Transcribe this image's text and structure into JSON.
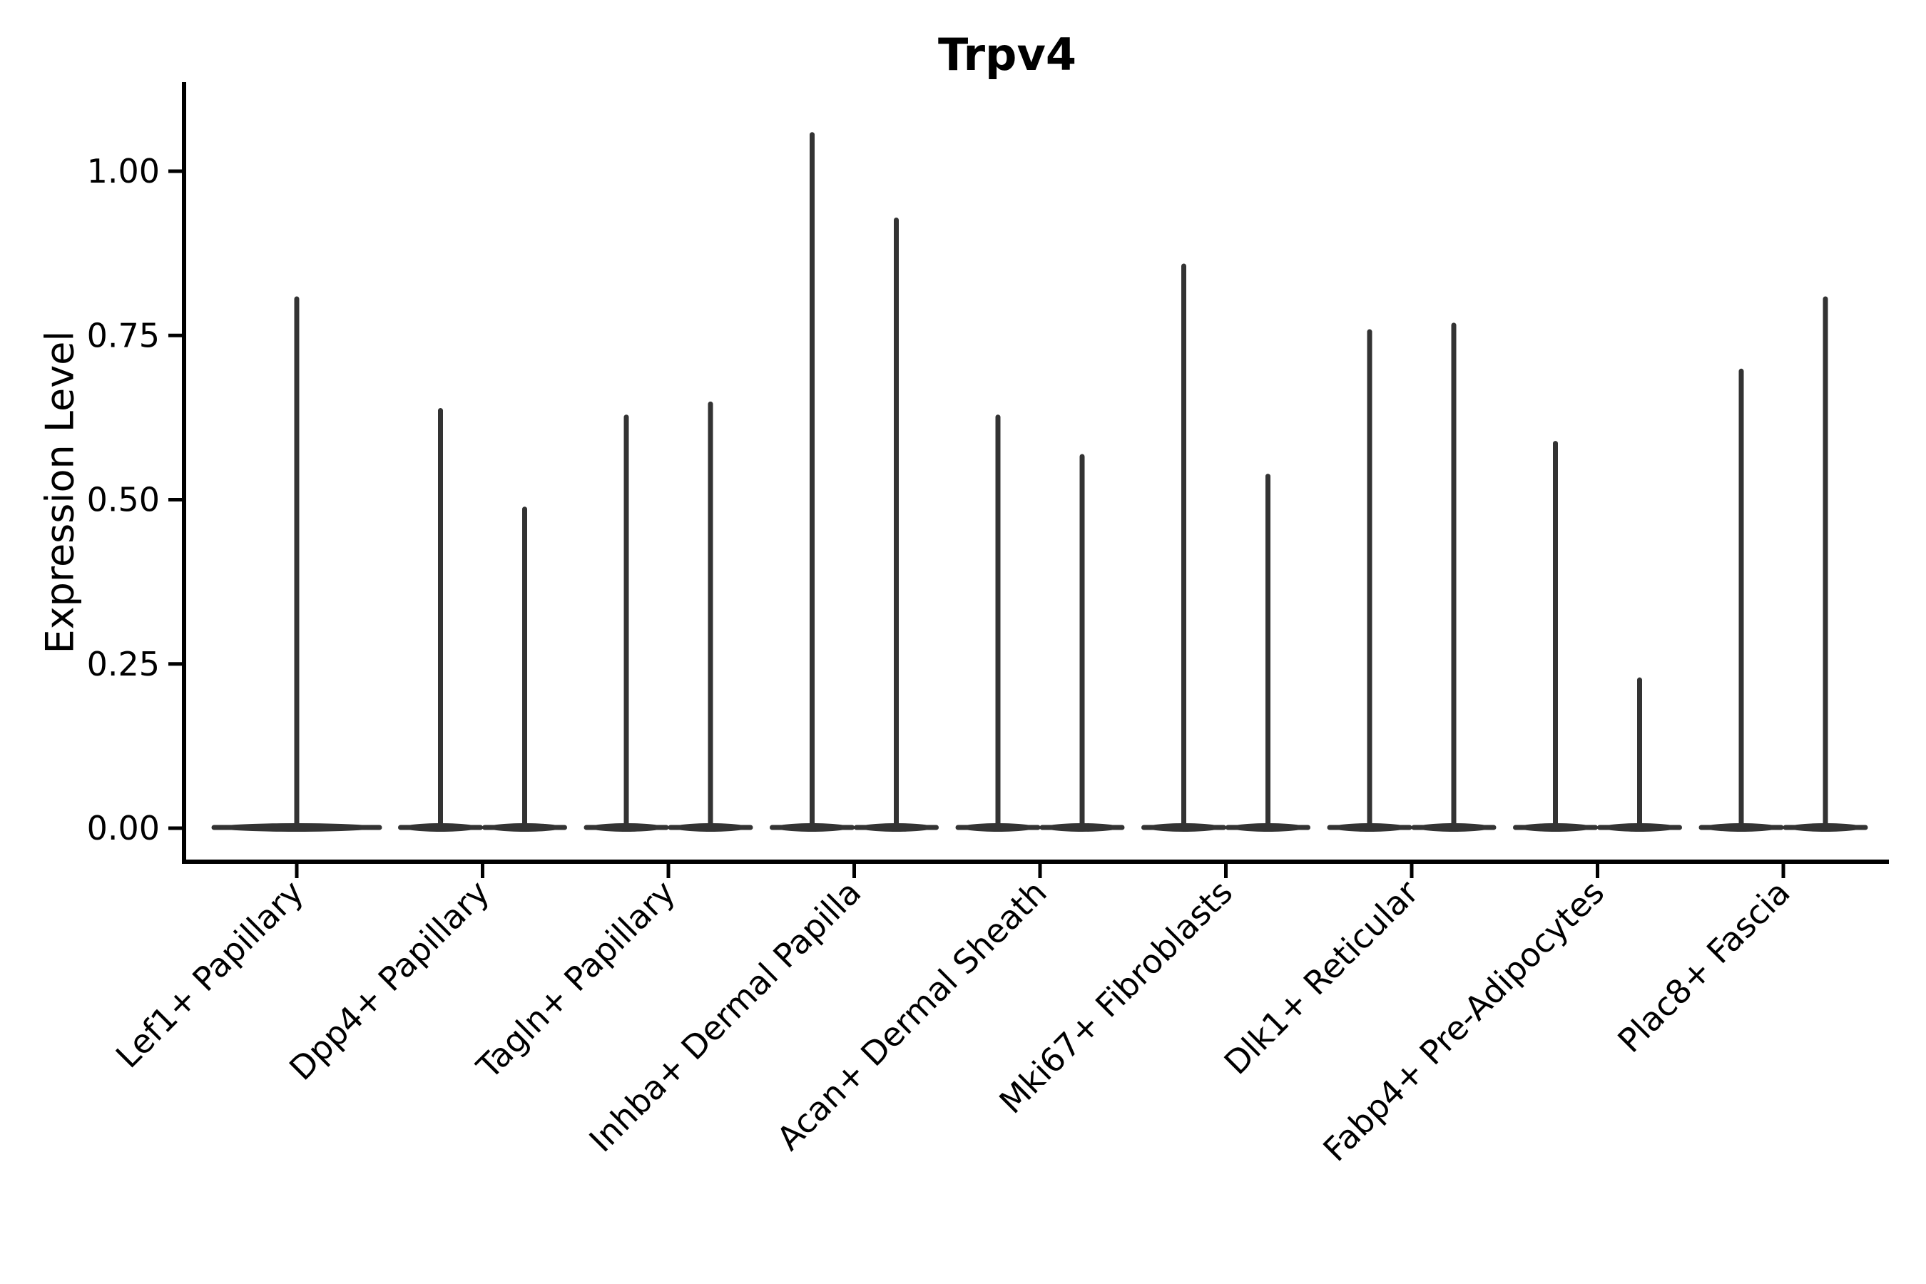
{
  "title": "Trpv4",
  "axes": {
    "ylabel": "Expression Level",
    "ytick_labels": [
      "0.00",
      "0.25",
      "0.50",
      "0.75",
      "1.00"
    ]
  },
  "chart_data": {
    "type": "violin",
    "title": "Trpv4",
    "xlabel": "",
    "ylabel": "Expression Level",
    "ylim": [
      0,
      1.13
    ],
    "yticks": [
      0,
      0.25,
      0.5,
      0.75,
      1.0
    ],
    "ytick_labels": [
      "0.00",
      "0.25",
      "0.50",
      "0.75",
      "1.00"
    ],
    "grid": false,
    "legend": "none",
    "violin_color": "#333333",
    "note": "Thin violins: expression mass concentrated at 0 with narrow tails up to a max value; categories 2-9 contain two violins side by side, category 1 a single centered violin",
    "categories": [
      "Lef1+ Papillary",
      "Dpp4+ Papillary",
      "Tagln+ Papillary",
      "Inhba+ Dermal Papilla",
      "Acan+ Dermal Sheath",
      "Mki67+ Fibroblasts",
      "Dlk1+ Reticular",
      "Fabp4+ Pre-Adipocytes",
      "Plac8+ Fascia"
    ],
    "series": [
      {
        "category": "Lef1+ Papillary",
        "violin_max_values": [
          0.81
        ]
      },
      {
        "category": "Dpp4+ Papillary",
        "violin_max_values": [
          0.64,
          0.49
        ]
      },
      {
        "category": "Tagln+ Papillary",
        "violin_max_values": [
          0.63,
          0.65
        ]
      },
      {
        "category": "Inhba+ Dermal Papilla",
        "violin_max_values": [
          1.06,
          0.93
        ]
      },
      {
        "category": "Acan+ Dermal Sheath",
        "violin_max_values": [
          0.63,
          0.57
        ]
      },
      {
        "category": "Mki67+ Fibroblasts",
        "violin_max_values": [
          0.86,
          0.54
        ]
      },
      {
        "category": "Dlk1+ Reticular",
        "violin_max_values": [
          0.76,
          0.77
        ]
      },
      {
        "category": "Fabp4+ Pre-Adipocytes",
        "violin_max_values": [
          0.59,
          0.23
        ]
      },
      {
        "category": "Plac8+ Fascia",
        "violin_max_values": [
          0.7,
          0.81
        ]
      }
    ]
  }
}
